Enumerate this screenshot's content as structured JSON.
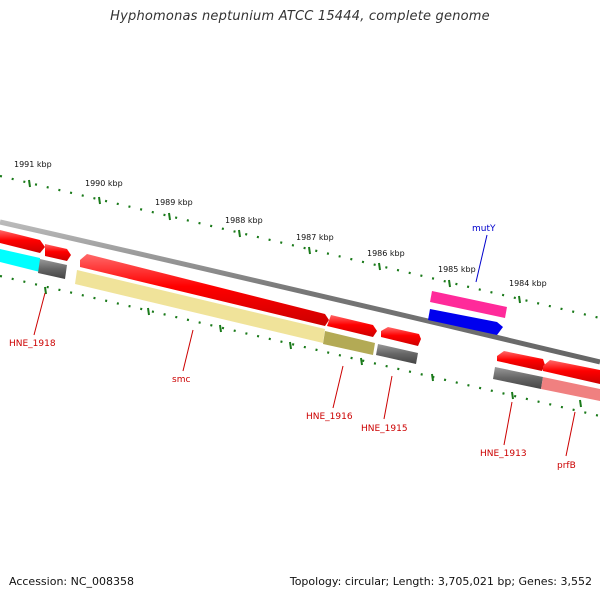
{
  "title": "Hyphomonas neptunium ATCC 15444, complete genome",
  "ruler_labels": [
    "1991 kbp",
    "1990 kbp",
    "1989 kbp",
    "1988 kbp",
    "1987 kbp",
    "1986 kbp",
    "1985 kbp",
    "1984 kbp"
  ],
  "gene_labels": [
    "HNE_1918",
    "smc",
    "HNE_1916",
    "HNE_1915",
    "mutY",
    "HNE_1913",
    "prfB"
  ],
  "colors": {
    "strand": "#888888",
    "tick_green": "#1a7a1a",
    "gene_red": "#ff0000",
    "label_red": "#cc0000",
    "label_blue": "#0000cc",
    "cyan": "#00ffff",
    "yellow": "#f0e39a",
    "olive": "#b3aa55",
    "dark_gray": "#666666",
    "magenta": "#ff2a9a",
    "blue": "#0000ee",
    "pink": "#f08080"
  },
  "footer": {
    "accession": "Accession: NC_008358",
    "summary": "Topology: circular; Length: 3,705,021 bp; Genes: 3,552"
  }
}
